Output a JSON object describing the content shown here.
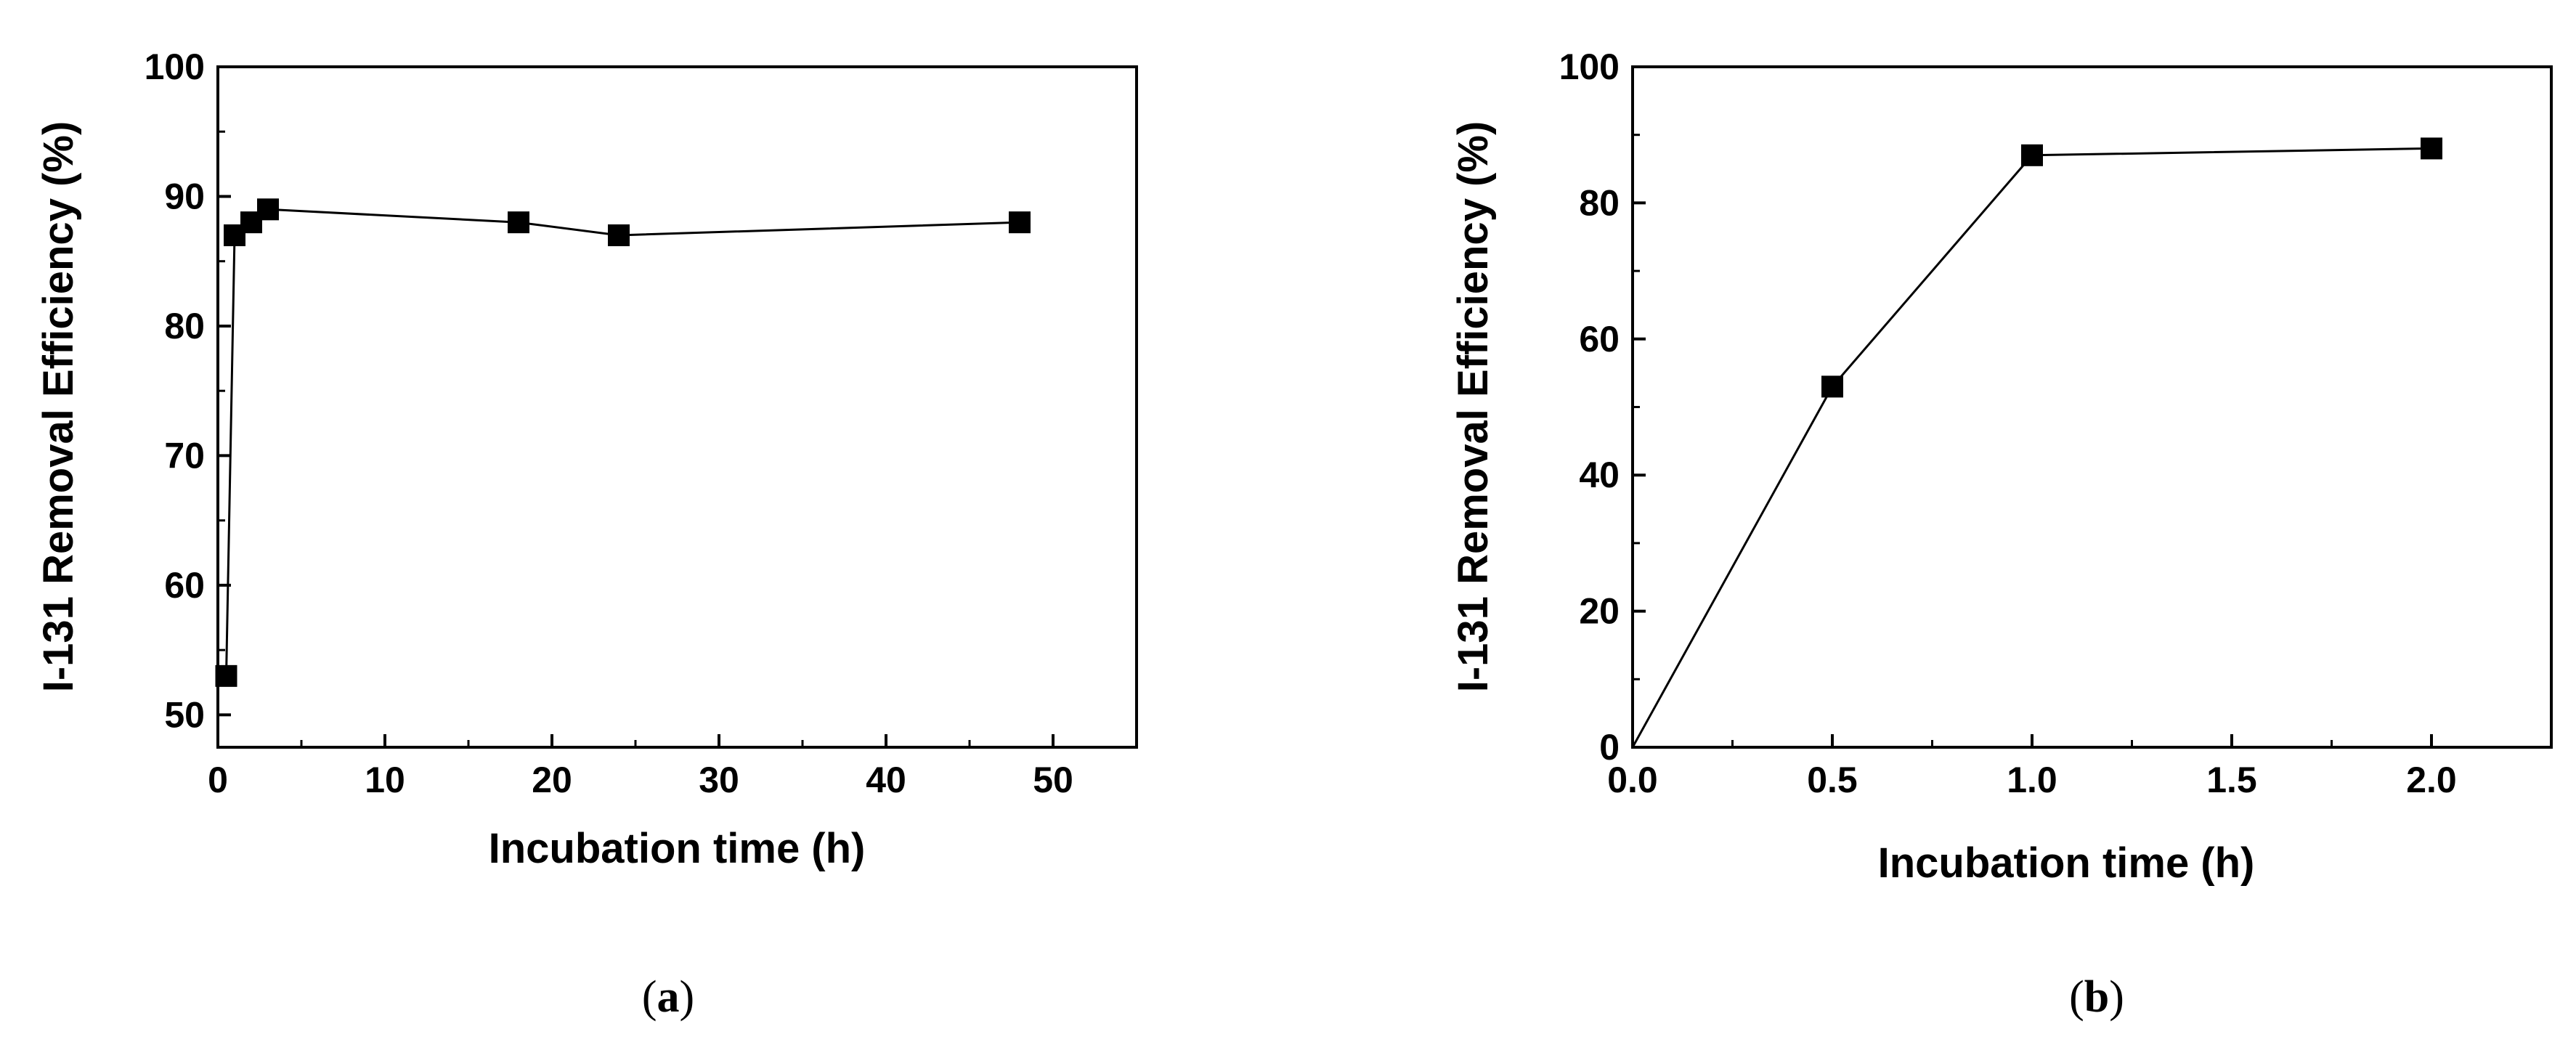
{
  "chart_data": [
    {
      "type": "line",
      "panel_label": "a",
      "xlabel": "Incubation time (h)",
      "ylabel": "I-131 Removal Efficiency (%)",
      "xlim": [
        0,
        55
      ],
      "ylim": [
        47.5,
        100
      ],
      "xticks": [
        0,
        10,
        20,
        30,
        40,
        50
      ],
      "yticks": [
        50,
        60,
        70,
        80,
        90,
        100
      ],
      "marker": "square",
      "series": [
        {
          "x": [
            0.5,
            1,
            2,
            3,
            18,
            24,
            48
          ],
          "y": [
            53,
            87,
            88,
            89,
            88,
            87,
            88
          ]
        }
      ]
    },
    {
      "type": "line",
      "panel_label": "b",
      "xlabel": "Incubation time (h)",
      "ylabel": "I-131 Removal Efficiency (%)",
      "xlim": [
        0,
        2.3
      ],
      "ylim": [
        0,
        100
      ],
      "xticks": [
        0.0,
        0.5,
        1.0,
        1.5,
        2.0
      ],
      "xtick_labels": [
        "0.0",
        "0.5",
        "1.0",
        "1.5",
        "2.0"
      ],
      "yticks": [
        0,
        20,
        40,
        60,
        80,
        100
      ],
      "marker": "square",
      "line_from_origin": true,
      "series": [
        {
          "x": [
            0.5,
            1.0,
            2.0
          ],
          "y": [
            53,
            87,
            88
          ]
        }
      ]
    }
  ]
}
